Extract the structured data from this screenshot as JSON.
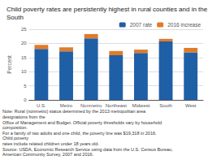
{
  "chart_data": {
    "type": "bar",
    "title": "Child poverty rates are persistently highest in rural counties and in the South",
    "ylabel": "Percent",
    "categories": [
      "U.S.",
      "Metro",
      "Nonmetro",
      "Northeast",
      "Midwest",
      "South",
      "West"
    ],
    "series": [
      {
        "name": "2007 rate",
        "color": "#1f5fa6",
        "values": [
          18.0,
          17.2,
          21.8,
          15.8,
          16.6,
          20.7,
          16.8
        ]
      },
      {
        "name": "2016 increase",
        "color": "#e07b2a",
        "values": [
          1.5,
          1.4,
          1.5,
          1.5,
          1.2,
          0.9,
          1.6
        ]
      }
    ],
    "stacked": true,
    "ylim": [
      0,
      25
    ],
    "yticks": [
      0,
      5,
      10,
      15,
      20,
      25
    ],
    "grid": true,
    "legend": "upper right",
    "annotations": [
      "Note: Rural (nonmetro) status determined by the 2013 metropolitan area designations from the",
      "Office of Management and Budget. Official poverty thresholds vary by household composition.",
      "For a family of two adults and one child, the poverty line was $19,318 in 2016. Child poverty",
      "rates include related children under 18 years old.",
      "Source: USDA, Economic Research Service using data from the U.S. Census Bureau,",
      "American Community Survey, 2007 and 2016."
    ]
  }
}
